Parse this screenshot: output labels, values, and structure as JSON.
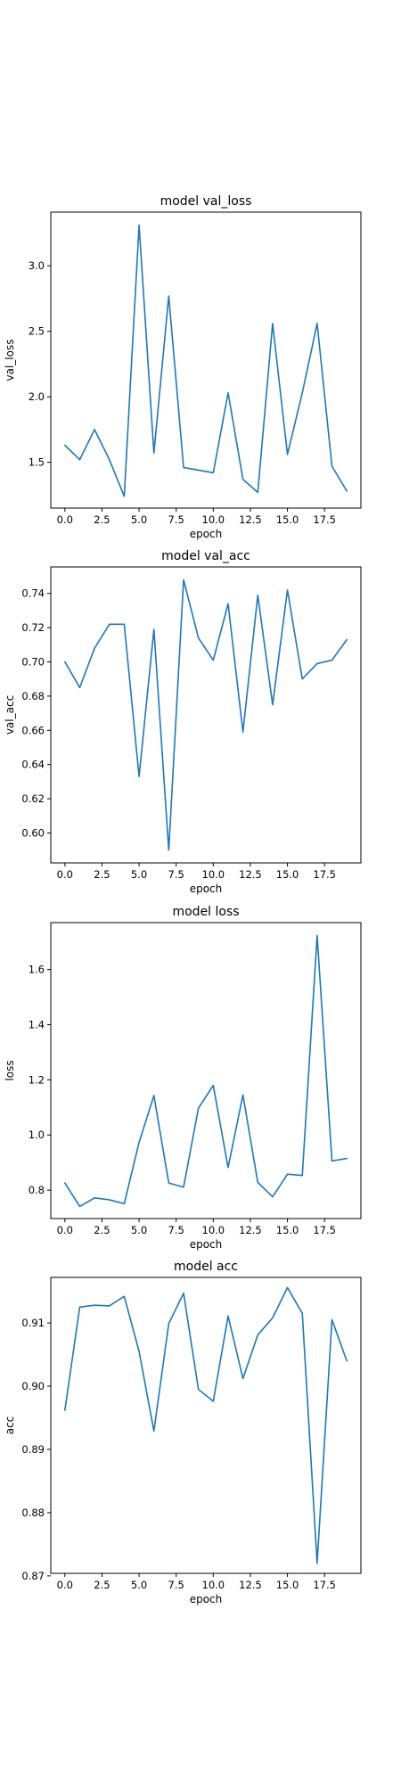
{
  "chart_data": [
    {
      "type": "line",
      "title": "model val_loss",
      "xlabel": "epoch",
      "ylabel": "val_loss",
      "xlim": [
        -0.95,
        19.95
      ],
      "ylim": [
        1.15,
        3.41
      ],
      "xticks": [
        "0.0",
        "2.5",
        "5.0",
        "7.5",
        "10.0",
        "12.5",
        "15.0",
        "17.5"
      ],
      "yticks": [
        "1.5",
        "2.0",
        "2.5",
        "3.0"
      ],
      "grid": false,
      "color": "#1f77b4",
      "x": [
        0,
        1,
        2,
        3,
        4,
        5,
        6,
        7,
        8,
        9,
        10,
        11,
        12,
        13,
        14,
        15,
        16,
        17,
        18,
        19
      ],
      "y": [
        1.63,
        1.52,
        1.75,
        1.52,
        1.24,
        3.31,
        1.57,
        2.77,
        1.46,
        1.44,
        1.42,
        2.03,
        1.37,
        1.27,
        2.56,
        1.56,
        2.03,
        2.56,
        1.47,
        1.28
      ]
    },
    {
      "type": "line",
      "title": "model val_acc",
      "xlabel": "epoch",
      "ylabel": "val_acc",
      "xlim": [
        -0.95,
        19.95
      ],
      "ylim": [
        0.5825,
        0.7555
      ],
      "xticks": [
        "0.0",
        "2.5",
        "5.0",
        "7.5",
        "10.0",
        "12.5",
        "15.0",
        "17.5"
      ],
      "yticks": [
        "0.60",
        "0.62",
        "0.64",
        "0.66",
        "0.68",
        "0.70",
        "0.72",
        "0.74"
      ],
      "grid": false,
      "color": "#1f77b4",
      "x": [
        0,
        1,
        2,
        3,
        4,
        5,
        6,
        7,
        8,
        9,
        10,
        11,
        12,
        13,
        14,
        15,
        16,
        17,
        18,
        19
      ],
      "y": [
        0.7,
        0.685,
        0.708,
        0.722,
        0.722,
        0.633,
        0.719,
        0.59,
        0.748,
        0.714,
        0.701,
        0.734,
        0.659,
        0.739,
        0.675,
        0.742,
        0.69,
        0.699,
        0.701,
        0.713
      ]
    },
    {
      "type": "line",
      "title": "model loss",
      "xlabel": "epoch",
      "ylabel": "loss",
      "xlim": [
        -0.95,
        19.95
      ],
      "ylim": [
        0.697,
        1.77
      ],
      "xticks": [
        "0.0",
        "2.5",
        "5.0",
        "7.5",
        "10.0",
        "12.5",
        "15.0",
        "17.5"
      ],
      "yticks": [
        "0.8",
        "1.0",
        "1.2",
        "1.4",
        "1.6"
      ],
      "grid": false,
      "color": "#1f77b4",
      "x": [
        0,
        1,
        2,
        3,
        4,
        5,
        6,
        7,
        8,
        9,
        10,
        11,
        12,
        13,
        14,
        15,
        16,
        17,
        18,
        19
      ],
      "y": [
        0.826,
        0.741,
        0.772,
        0.765,
        0.751,
        0.973,
        1.143,
        0.826,
        0.811,
        1.097,
        1.18,
        0.882,
        1.145,
        0.828,
        0.776,
        0.858,
        0.853,
        1.723,
        0.906,
        0.915
      ]
    },
    {
      "type": "line",
      "title": "model acc",
      "xlabel": "epoch",
      "ylabel": "acc",
      "xlim": [
        -0.95,
        19.95
      ],
      "ylim": [
        0.8704,
        0.9172
      ],
      "xticks": [
        "0.0",
        "2.5",
        "5.0",
        "7.5",
        "10.0",
        "12.5",
        "15.0",
        "17.5"
      ],
      "yticks": [
        "0.87",
        "0.88",
        "0.89",
        "0.90",
        "0.91"
      ],
      "grid": false,
      "color": "#1f77b4",
      "x": [
        0,
        1,
        2,
        3,
        4,
        5,
        6,
        7,
        8,
        9,
        10,
        11,
        12,
        13,
        14,
        15,
        16,
        17,
        18,
        19
      ],
      "y": [
        0.8962,
        0.9125,
        0.9128,
        0.9127,
        0.9142,
        0.9055,
        0.8929,
        0.9099,
        0.9147,
        0.8995,
        0.8976,
        0.9111,
        0.9012,
        0.9081,
        0.9108,
        0.9156,
        0.9115,
        0.872,
        0.9105,
        0.904
      ]
    }
  ]
}
